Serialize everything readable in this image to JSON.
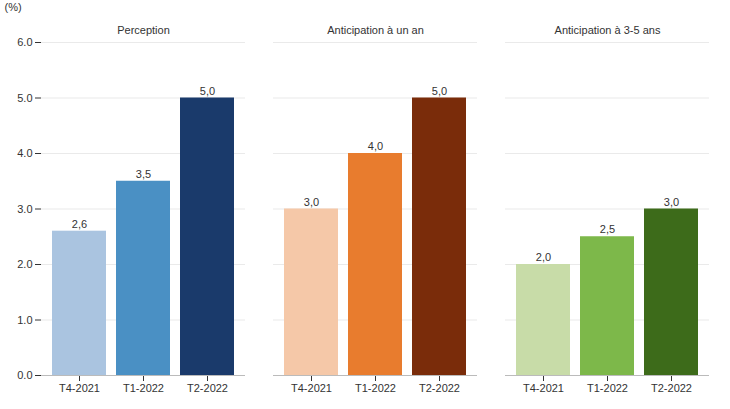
{
  "chart_data": {
    "type": "bar",
    "ylabel": "(%)",
    "categories": [
      "T4-2021",
      "T1-2022",
      "T2-2022"
    ],
    "series": [
      {
        "name": "Perception",
        "colors": [
          "#aac4e0",
          "#4a90c4",
          "#1a3a6b"
        ],
        "values": [
          2.6,
          3.5,
          5.0
        ],
        "value_labels": [
          "2,6",
          "3,5",
          "5,0"
        ]
      },
      {
        "name": "Anticipation à un an",
        "colors": [
          "#f5c8a8",
          "#e87c2e",
          "#7a2c0a"
        ],
        "values": [
          3.0,
          4.0,
          5.0
        ],
        "value_labels": [
          "3,0",
          "4,0",
          "5,0"
        ]
      },
      {
        "name": "Anticipation à 3-5 ans",
        "colors": [
          "#c8dca8",
          "#7db84a",
          "#3d6b1a"
        ],
        "values": [
          2.0,
          2.5,
          3.0
        ],
        "value_labels": [
          "2,0",
          "2,5",
          "3,0"
        ]
      }
    ],
    "ylim": [
      0,
      6
    ],
    "yticks": [
      0,
      1,
      2,
      3,
      4,
      5,
      6
    ],
    "grid": true,
    "data_labels": true
  }
}
